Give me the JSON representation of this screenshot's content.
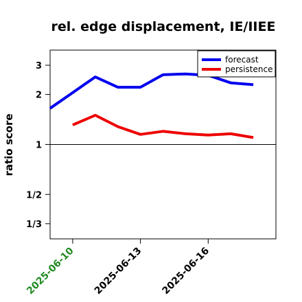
{
  "chart_data": {
    "type": "line",
    "title": "rel. edge displacement, IE/IIEE",
    "xlabel": "",
    "ylabel": "ratio score",
    "y_scale": "log",
    "ylim": [
      0.27,
      3.7
    ],
    "xlim": [
      "2025-06-09",
      "2025-06-19"
    ],
    "y_ticks": [
      {
        "value": 3,
        "label": "3"
      },
      {
        "value": 2,
        "label": "2"
      },
      {
        "value": 1,
        "label": "1"
      },
      {
        "value": 0.5,
        "label": "1/2"
      },
      {
        "value": 0.3333,
        "label": "1/3"
      }
    ],
    "x_ticks": [
      {
        "value": "2025-06-10",
        "label": "2025-06-10",
        "color": "#228b22"
      },
      {
        "value": "2025-06-13",
        "label": "2025-06-13",
        "color": "#000000"
      },
      {
        "value": "2025-06-16",
        "label": "2025-06-16",
        "color": "#000000"
      }
    ],
    "reference_line": 1,
    "grid": false,
    "legend_position": "top-right",
    "series": [
      {
        "name": "forecast",
        "color": "#0000ee",
        "x": [
          "2025-06-09",
          "2025-06-10",
          "2025-06-11",
          "2025-06-12",
          "2025-06-13",
          "2025-06-14",
          "2025-06-15",
          "2025-06-16",
          "2025-06-17",
          "2025-06-18"
        ],
        "y": [
          1.65,
          2.05,
          2.55,
          2.21,
          2.21,
          2.63,
          2.66,
          2.61,
          2.35,
          2.29
        ]
      },
      {
        "name": "persistence",
        "color": "#ee0000",
        "x": [
          "2025-06-10",
          "2025-06-11",
          "2025-06-12",
          "2025-06-13",
          "2025-06-14",
          "2025-06-15",
          "2025-06-16",
          "2025-06-17",
          "2025-06-18"
        ],
        "y": [
          1.31,
          1.5,
          1.28,
          1.15,
          1.2,
          1.16,
          1.14,
          1.16,
          1.1
        ]
      }
    ]
  }
}
